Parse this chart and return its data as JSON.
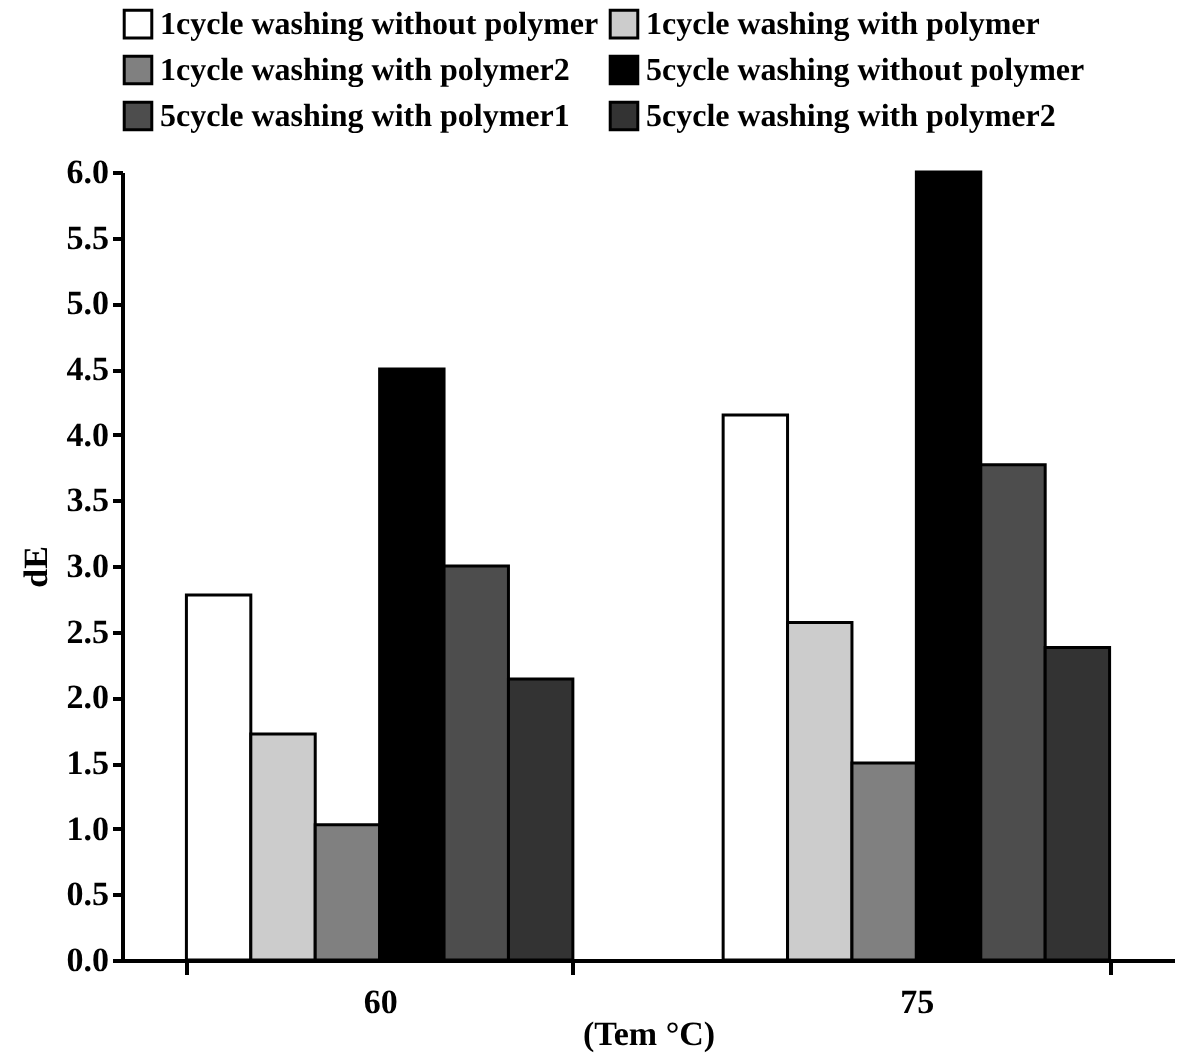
{
  "chart_data": {
    "type": "bar",
    "xlabel": "(Tem °C)",
    "ylabel": "dE",
    "categories": [
      "60",
      "75"
    ],
    "series": [
      {
        "name": "1cycle washing without polymer",
        "color": "#ffffff",
        "values": [
          2.78,
          4.15
        ]
      },
      {
        "name": "1cycle washing with polymer",
        "color": "#cccccc",
        "values": [
          1.72,
          2.57
        ]
      },
      {
        "name": "1cycle washing with polymer2",
        "color": "#808080",
        "values": [
          1.03,
          1.5
        ]
      },
      {
        "name": "5cycle washing without polymer",
        "color": "#000000",
        "values": [
          4.5,
          6.0
        ]
      },
      {
        "name": "5cycle washing with polymer1",
        "color": "#4d4d4d",
        "values": [
          3.0,
          3.77
        ]
      },
      {
        "name": "5cycle washing with polymer2",
        "color": "#333333",
        "values": [
          2.14,
          2.38
        ]
      }
    ],
    "ylim": [
      0,
      6
    ],
    "yticks": [
      {
        "value": 0,
        "label": "0.0"
      },
      {
        "value": 0.5,
        "label": "0.5"
      },
      {
        "value": 1,
        "label": "1.0"
      },
      {
        "value": 1.5,
        "label": "1.5"
      },
      {
        "value": 2,
        "label": "2.0"
      },
      {
        "value": 2.5,
        "label": "2.5"
      },
      {
        "value": 3,
        "label": "3.0"
      },
      {
        "value": 3.5,
        "label": "3.5"
      },
      {
        "value": 4,
        "label": "4.0"
      },
      {
        "value": 4.5,
        "label": "4.5"
      },
      {
        "value": 5,
        "label": "5.0"
      },
      {
        "value": 5.5,
        "label": "5.5"
      },
      {
        "value": 6,
        "label": "6.0"
      }
    ],
    "grid": false,
    "legend": "top"
  }
}
